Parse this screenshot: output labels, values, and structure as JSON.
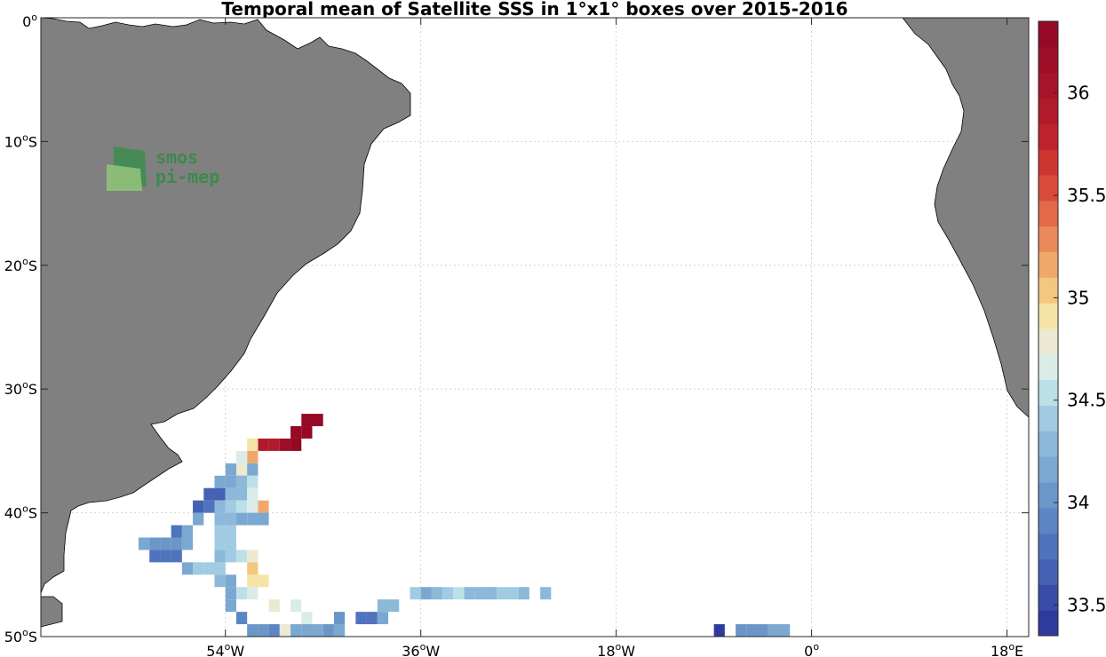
{
  "chart_data": {
    "type": "heatmap",
    "title": "Temporal mean of Satellite SSS in 1°x1° boxes over 2015-2016",
    "xlim": [
      -71,
      20
    ],
    "ylim": [
      -50,
      0
    ],
    "grid": true,
    "x_ticks": [
      {
        "value": -54,
        "label": "54",
        "suffix": "W"
      },
      {
        "value": -36,
        "label": "36",
        "suffix": "W"
      },
      {
        "value": -18,
        "label": "18",
        "suffix": "W"
      },
      {
        "value": 0,
        "label": "0",
        "suffix": ""
      },
      {
        "value": 18,
        "label": "18",
        "suffix": "E"
      }
    ],
    "y_ticks": [
      {
        "value": 0,
        "label": "0",
        "suffix": ""
      },
      {
        "value": -10,
        "label": "10",
        "suffix": "S"
      },
      {
        "value": -20,
        "label": "20",
        "suffix": "S"
      },
      {
        "value": -30,
        "label": "30",
        "suffix": "S"
      },
      {
        "value": -40,
        "label": "40",
        "suffix": "S"
      },
      {
        "value": -50,
        "label": "50",
        "suffix": "S"
      }
    ],
    "colorbar": {
      "min": 33.35,
      "max": 36.35,
      "levels": 24,
      "colors": [
        "#2e3b9c",
        "#3a4ca8",
        "#4561b4",
        "#5073bd",
        "#5c86c3",
        "#6a97c8",
        "#7aa8d0",
        "#8cb8d9",
        "#a0cbe2",
        "#bcdfe8",
        "#d9ece8",
        "#ece9d2",
        "#f5e3a8",
        "#f4c77e",
        "#f0a86a",
        "#ea8a5a",
        "#e36a48",
        "#da4a3a",
        "#cd3630",
        "#bc232c",
        "#b01a2b",
        "#a71429",
        "#9e0e27",
        "#960925"
      ],
      "ticks": [
        33.5,
        34,
        34.5,
        35,
        35.5,
        36
      ],
      "tick_labels": [
        "33.5",
        "34",
        "34.5",
        "35",
        "35.5",
        "36"
      ]
    },
    "cells": [
      [
        -47,
        -33,
        36.3
      ],
      [
        -46,
        -33,
        36.3
      ],
      [
        -48,
        -34,
        36.3
      ],
      [
        -47,
        -34,
        36.3
      ],
      [
        -51,
        -35,
        35.9
      ],
      [
        -50,
        -35,
        35.9
      ],
      [
        -49,
        -35,
        36.2
      ],
      [
        -48,
        -35,
        36.3
      ],
      [
        -52,
        -35,
        34.9
      ],
      [
        -52,
        -36,
        35.1
      ],
      [
        -53,
        -36,
        34.6
      ],
      [
        -53,
        -37,
        34.8
      ],
      [
        -54,
        -37,
        34.1
      ],
      [
        -53,
        -38,
        34.3
      ],
      [
        -52,
        -37,
        34.2
      ],
      [
        -55,
        -38,
        34.2
      ],
      [
        -54,
        -38,
        34.1
      ],
      [
        -53,
        -38,
        34.3
      ],
      [
        -52,
        -38,
        34.5
      ],
      [
        -56,
        -39,
        33.6
      ],
      [
        -55,
        -39,
        33.6
      ],
      [
        -54,
        -39,
        34.3
      ],
      [
        -53,
        -39,
        34.3
      ],
      [
        -52,
        -39,
        34.6
      ],
      [
        -57,
        -40,
        33.7
      ],
      [
        -56,
        -40,
        33.8
      ],
      [
        -55,
        -40,
        34.3
      ],
      [
        -54,
        -40,
        34.4
      ],
      [
        -53,
        -40,
        34.5
      ],
      [
        -52,
        -40,
        34.7
      ],
      [
        -51,
        -40,
        35.1
      ],
      [
        -57,
        -41,
        34.2
      ],
      [
        -55,
        -41,
        34.3
      ],
      [
        -54,
        -41,
        34.3
      ],
      [
        -53,
        -41,
        34.2
      ],
      [
        -52,
        -41,
        34.2
      ],
      [
        -51,
        -41,
        34.2
      ],
      [
        -59,
        -42,
        33.8
      ],
      [
        -58,
        -42,
        34.1
      ],
      [
        -55,
        -42,
        34.4
      ],
      [
        -54,
        -42,
        34.4
      ],
      [
        -62,
        -43,
        34.1
      ],
      [
        -61,
        -43,
        34.0
      ],
      [
        -60,
        -43,
        34.0
      ],
      [
        -59,
        -43,
        34.0
      ],
      [
        -58,
        -43,
        34.2
      ],
      [
        -55,
        -43,
        34.4
      ],
      [
        -54,
        -43,
        34.4
      ],
      [
        -61,
        -44,
        33.8
      ],
      [
        -60,
        -44,
        33.8
      ],
      [
        -59,
        -44,
        33.8
      ],
      [
        -55,
        -44,
        34.3
      ],
      [
        -54,
        -44,
        34.4
      ],
      [
        -53,
        -44,
        34.5
      ],
      [
        -52,
        -44,
        34.8
      ],
      [
        -58,
        -45,
        34.1
      ],
      [
        -57,
        -45,
        34.4
      ],
      [
        -56,
        -45,
        34.4
      ],
      [
        -55,
        -45,
        34.4
      ],
      [
        -52,
        -45,
        35.0
      ],
      [
        -55,
        -46,
        34.3
      ],
      [
        -54,
        -46,
        34.2
      ],
      [
        -52,
        -46,
        34.9
      ],
      [
        -51,
        -46,
        34.9
      ],
      [
        -54,
        -47,
        34.1
      ],
      [
        -53,
        -47,
        34.5
      ],
      [
        -52,
        -47,
        34.6
      ],
      [
        -37,
        -47,
        34.4
      ],
      [
        -36,
        -47,
        34.2
      ],
      [
        -35,
        -47,
        34.3
      ],
      [
        -34,
        -47,
        34.4
      ],
      [
        -33,
        -47,
        34.5
      ],
      [
        -32,
        -47,
        34.3
      ],
      [
        -31,
        -47,
        34.3
      ],
      [
        -30,
        -47,
        34.3
      ],
      [
        -29,
        -47,
        34.4
      ],
      [
        -28,
        -47,
        34.4
      ],
      [
        -27,
        -47,
        34.3
      ],
      [
        -25,
        -47,
        34.3
      ],
      [
        -54,
        -48,
        34.1
      ],
      [
        -50,
        -48,
        34.8
      ],
      [
        -48,
        -48,
        34.7
      ],
      [
        -40,
        -48,
        34.3
      ],
      [
        -39,
        -48,
        34.3
      ],
      [
        -53,
        -49,
        33.9
      ],
      [
        -47,
        -49,
        34.6
      ],
      [
        -44,
        -49,
        34.0
      ],
      [
        -42,
        -49,
        33.8
      ],
      [
        -41,
        -49,
        33.8
      ],
      [
        -40,
        -49,
        34.1
      ],
      [
        -52,
        -50,
        34.0
      ],
      [
        -51,
        -50,
        34.0
      ],
      [
        -50,
        -50,
        33.9
      ],
      [
        -49,
        -50,
        34.8
      ],
      [
        -48,
        -50,
        34.2
      ],
      [
        -47,
        -50,
        34.2
      ],
      [
        -46,
        -50,
        34.1
      ],
      [
        -45,
        -50,
        34.0
      ],
      [
        -44,
        -50,
        34.2
      ],
      [
        -9,
        -50,
        33.4
      ],
      [
        -7,
        -50,
        34.0
      ],
      [
        -6,
        -50,
        34.0
      ],
      [
        -5,
        -50,
        34.0
      ],
      [
        -4,
        -50,
        34.2
      ],
      [
        -3,
        -50,
        34.2
      ]
    ]
  },
  "logo": {
    "line1": "smos",
    "line2": "pi-mep"
  }
}
